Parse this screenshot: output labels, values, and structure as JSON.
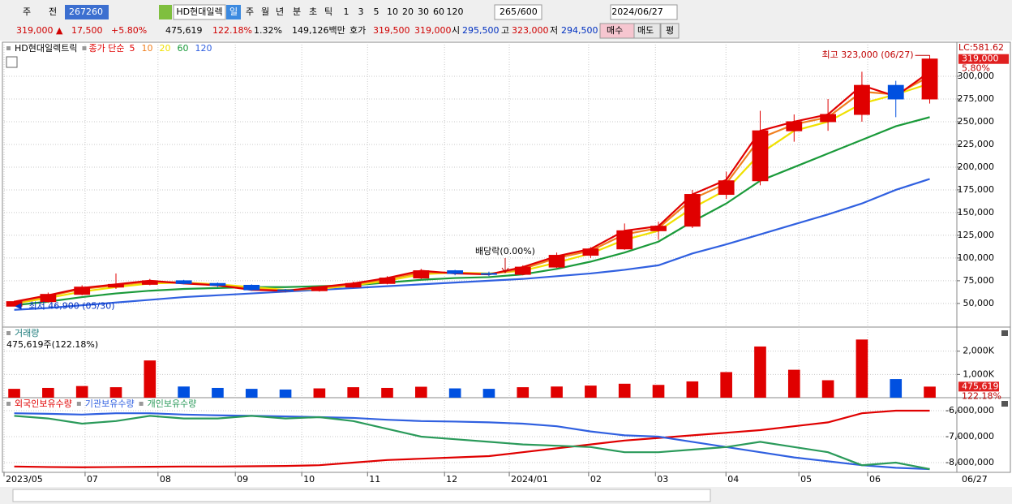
{
  "toolbar": {
    "items": [
      "주",
      "전",
      "267260",
      "HD현대일렉",
      "일",
      "주",
      "월",
      "년",
      "분",
      "초",
      "틱",
      "1",
      "3",
      "5",
      "10",
      "20",
      "30",
      "60",
      "120",
      "265",
      "/600",
      "2024/06/27"
    ]
  },
  "quote_bar": {
    "items": [
      {
        "text": "319,000 ▲",
        "color": "#d00000"
      },
      {
        "text": "17,500",
        "color": "#d00000"
      },
      {
        "text": "+5.80%",
        "color": "#d00000"
      },
      {
        "text": "475,619",
        "color": "#000000"
      },
      {
        "text": "122.18%",
        "color": "#d00000"
      },
      {
        "text": "1.32%",
        "color": "#000000"
      },
      {
        "text": "149,126백만",
        "color": "#000000"
      },
      {
        "text": "호가",
        "color": "#000000"
      },
      {
        "text": "319,500",
        "color": "#d00000"
      },
      {
        "text": "319,000",
        "color": "#d00000"
      },
      {
        "text": "시",
        "color": "#000000"
      },
      {
        "text": "295,500",
        "color": "#0030c0"
      },
      {
        "text": "고",
        "color": "#000000"
      },
      {
        "text": "323,000",
        "color": "#d00000"
      },
      {
        "text": "저",
        "color": "#000000"
      },
      {
        "text": "294,500",
        "color": "#0030c0"
      },
      {
        "text": "매수",
        "color": "#000000"
      },
      {
        "text": "매도",
        "color": "#000000"
      },
      {
        "text": "평",
        "color": "#000000"
      }
    ]
  },
  "chart_data": [
    {
      "type": "candlestick",
      "title": "HD현대일렉트릭",
      "legend_title": "종가 단순",
      "x": [
        0,
        1,
        2,
        3,
        4,
        5,
        6,
        7,
        8,
        9,
        10,
        11,
        12,
        13,
        14,
        15,
        16,
        17,
        18,
        19,
        20,
        21,
        22,
        23,
        24,
        25,
        26,
        27
      ],
      "open": [
        47000,
        52000,
        60000,
        68000,
        71000,
        75000,
        72000,
        70000,
        65000,
        64000,
        68000,
        72000,
        78000,
        86000,
        83000,
        82000,
        90000,
        103000,
        110000,
        130000,
        135000,
        170000,
        185000,
        240000,
        250000,
        258000,
        290000,
        275000
      ],
      "high": [
        53000,
        62000,
        70000,
        83000,
        77000,
        76000,
        73000,
        71000,
        66000,
        69000,
        74000,
        80000,
        88000,
        87000,
        85000,
        92000,
        106000,
        112000,
        138000,
        140000,
        175000,
        195000,
        262000,
        258000,
        275000,
        305000,
        295000,
        323000
      ],
      "low": [
        46900,
        51000,
        59000,
        66000,
        70000,
        71000,
        68000,
        64000,
        62000,
        63000,
        67000,
        71000,
        77000,
        81000,
        80000,
        81000,
        89000,
        100000,
        109000,
        120000,
        133000,
        165000,
        180000,
        228000,
        240000,
        250000,
        255000,
        270000
      ],
      "close": [
        52000,
        60000,
        68000,
        71000,
        75000,
        72000,
        70000,
        65000,
        64000,
        68000,
        72000,
        78000,
        86000,
        83000,
        82000,
        90000,
        103000,
        110000,
        130000,
        135000,
        170000,
        185000,
        240000,
        250000,
        258000,
        290000,
        275000,
        319000
      ],
      "up_color": "#e00000",
      "down_color": "#0050e0",
      "series": [
        {
          "name": "5",
          "color": "#e00000",
          "values": [
            52000,
            59000,
            67000,
            71000,
            75000,
            72000,
            70000,
            65000,
            64000,
            68000,
            72000,
            78000,
            86000,
            83000,
            82000,
            90000,
            102000,
            110000,
            130000,
            135000,
            170000,
            186000,
            240000,
            250000,
            258000,
            290000,
            278000,
            305000
          ]
        },
        {
          "name": "10",
          "color": "#f08020",
          "values": [
            51000,
            58000,
            66000,
            70000,
            74000,
            73000,
            70000,
            66000,
            64000,
            67000,
            71000,
            77000,
            84000,
            84000,
            82000,
            88000,
            100000,
            108000,
            126000,
            133000,
            165000,
            182000,
            232000,
            247000,
            255000,
            283000,
            280000,
            300000
          ]
        },
        {
          "name": "20",
          "color": "#f0e000",
          "values": [
            50000,
            56000,
            63000,
            68000,
            72000,
            73000,
            71000,
            68000,
            65000,
            66000,
            70000,
            75000,
            82000,
            84000,
            83000,
            86000,
            95000,
            105000,
            120000,
            130000,
            155000,
            175000,
            215000,
            240000,
            250000,
            270000,
            280000,
            292000
          ]
        },
        {
          "name": "60",
          "color": "#1a9a3a",
          "values": [
            48000,
            52000,
            57000,
            61000,
            64000,
            66000,
            67000,
            68000,
            68000,
            69000,
            70000,
            73000,
            76000,
            78000,
            79000,
            82000,
            88000,
            96000,
            106000,
            118000,
            140000,
            160000,
            185000,
            200000,
            215000,
            230000,
            245000,
            255000
          ]
        },
        {
          "name": "120",
          "color": "#3060e0",
          "values": [
            43000,
            45000,
            48000,
            51000,
            54000,
            57000,
            59000,
            61000,
            63000,
            65000,
            67000,
            69000,
            71000,
            73000,
            75000,
            77000,
            80000,
            83000,
            87000,
            92000,
            105000,
            115000,
            126000,
            137000,
            148000,
            160000,
            175000,
            187000
          ]
        }
      ],
      "ylim": [
        24000,
        337500
      ],
      "yticks": [
        {
          "value": 50000,
          "label": "50,000"
        },
        {
          "value": 75000,
          "label": "75,000"
        },
        {
          "value": 100000,
          "label": "100,000"
        },
        {
          "value": 125000,
          "label": "125,000"
        },
        {
          "value": 150000,
          "label": "150,000"
        },
        {
          "value": 175000,
          "label": "175,000"
        },
        {
          "value": 200000,
          "label": "200,000"
        },
        {
          "value": 225000,
          "label": "225,000"
        },
        {
          "value": 250000,
          "label": "250,000"
        },
        {
          "value": 275000,
          "label": "275,000"
        },
        {
          "value": 300000,
          "label": "300,000"
        }
      ],
      "xlim": [
        -0.3,
        27.8
      ],
      "xticks": [
        {
          "value": -0.3,
          "label": "2023/05"
        },
        {
          "value": 2.09,
          "label": "07"
        },
        {
          "value": 4.24,
          "label": "08"
        },
        {
          "value": 6.52,
          "label": "09"
        },
        {
          "value": 8.48,
          "label": "10"
        },
        {
          "value": 10.42,
          "label": "11"
        },
        {
          "value": 12.69,
          "label": "12"
        },
        {
          "value": 14.6,
          "label": "2024/01"
        },
        {
          "value": 16.94,
          "label": "02"
        },
        {
          "value": 18.91,
          "label": "03"
        },
        {
          "value": 20.99,
          "label": "04"
        },
        {
          "value": 23.14,
          "label": "05"
        },
        {
          "value": 25.17,
          "label": "06"
        }
      ],
      "last_date": "06/27",
      "annotations": {
        "high": "최고 323,000 (06/27)",
        "low": "최저 46,900 (05/30)",
        "dividend": "배당락(0.00%)"
      },
      "axis_labels": {
        "top": "LC:581.62",
        "last_price": "319,000",
        "change": "5.80%"
      }
    },
    {
      "type": "bar",
      "title": "거래량",
      "subtitle": "475,619주(122.18%)",
      "values": [
        380000,
        420000,
        500000,
        450000,
        1600000,
        480000,
        420000,
        380000,
        350000,
        400000,
        450000,
        420000,
        470000,
        400000,
        380000,
        450000,
        480000,
        520000,
        600000,
        550000,
        700000,
        1100000,
        2200000,
        1200000,
        750000,
        2500000,
        800000,
        475619
      ],
      "ylim": [
        0,
        3035000
      ],
      "yticks": [
        {
          "value": 1000000,
          "label": "1,000K"
        },
        {
          "value": 2000000,
          "label": "2,000K"
        }
      ],
      "axis_labels": {
        "last_volume": "475,619",
        "ratio": "122.18%"
      }
    },
    {
      "type": "line",
      "series": [
        {
          "name": "외국인보유수량",
          "color": "#e00000",
          "values": [
            -8150000,
            -8170000,
            -8180000,
            -8170000,
            -8160000,
            -8150000,
            -8150000,
            -8140000,
            -8130000,
            -8100000,
            -8000000,
            -7900000,
            -7850000,
            -7800000,
            -7750000,
            -7600000,
            -7450000,
            -7300000,
            -7150000,
            -7050000,
            -6950000,
            -6850000,
            -6750000,
            -6600000,
            -6450000,
            -6100000,
            -6000000,
            -6000000
          ]
        },
        {
          "name": "기관보유수량",
          "color": "#3060e0",
          "values": [
            -6100000,
            -6120000,
            -6150000,
            -6100000,
            -6100000,
            -6150000,
            -6180000,
            -6200000,
            -6220000,
            -6250000,
            -6280000,
            -6350000,
            -6400000,
            -6420000,
            -6450000,
            -6500000,
            -6600000,
            -6800000,
            -6950000,
            -7000000,
            -7200000,
            -7400000,
            -7600000,
            -7800000,
            -7950000,
            -8100000,
            -8200000,
            -8250000
          ]
        },
        {
          "name": "개인보유수량",
          "color": "#2a9a5a",
          "values": [
            -6200000,
            -6300000,
            -6500000,
            -6400000,
            -6200000,
            -6300000,
            -6300000,
            -6200000,
            -6300000,
            -6250000,
            -6400000,
            -6700000,
            -7000000,
            -7100000,
            -7200000,
            -7300000,
            -7350000,
            -7400000,
            -7600000,
            -7600000,
            -7500000,
            -7400000,
            -7200000,
            -7400000,
            -7600000,
            -8100000,
            -8000000,
            -8250000
          ]
        }
      ],
      "ylim": [
        -8375000,
        -5500000
      ],
      "yticks": [
        {
          "value": -6000000,
          "label": "-6,000,000"
        },
        {
          "value": -7000000,
          "label": "-7,000,000"
        },
        {
          "value": -8000000,
          "label": "-8,000,000"
        }
      ]
    }
  ]
}
